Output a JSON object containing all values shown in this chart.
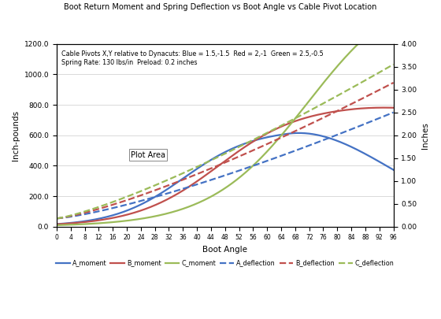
{
  "title": "Boot Return Moment and Spring Deflection vs Boot Angle vs Cable Pivot Location",
  "subtitle1": "Cable Pivots X,Y relative to Dynacuts: Blue = 1.5,-1.5  Red = 2,-1  Green = 2.5,-0.5",
  "subtitle2": "Spring Rate: 130 lbs/in  Preload: 0.2 inches",
  "xlabel": "Boot Angle",
  "ylabel_left": "Inch-pounds",
  "ylabel_right": "Inches",
  "xlim": [
    0,
    96
  ],
  "ylim_left": [
    0,
    1200
  ],
  "ylim_right": [
    0,
    4.0
  ],
  "xticks": [
    0,
    4,
    8,
    12,
    16,
    20,
    24,
    28,
    32,
    36,
    40,
    44,
    48,
    52,
    56,
    60,
    64,
    68,
    72,
    76,
    80,
    84,
    88,
    92,
    96
  ],
  "yticks_left": [
    0.0,
    200.0,
    400.0,
    600.0,
    800.0,
    1000.0,
    1200.0
  ],
  "yticks_right": [
    0.0,
    0.5,
    1.0,
    1.5,
    2.0,
    2.5,
    3.0,
    3.5,
    4.0
  ],
  "colors": {
    "blue": "#4472C4",
    "red": "#C0504D",
    "green": "#9BBB59",
    "blue_dashed": "#4472C4",
    "red_dashed": "#C0504D",
    "green_dashed": "#9BBB59"
  },
  "annotation": "Plot Area",
  "legend_labels": [
    "A_moment",
    "B_moment",
    "C_moment",
    "A_deflection",
    "B_deflection",
    "C_deflection"
  ],
  "background_color": "#ffffff",
  "grid_color": "#d3d3d3"
}
